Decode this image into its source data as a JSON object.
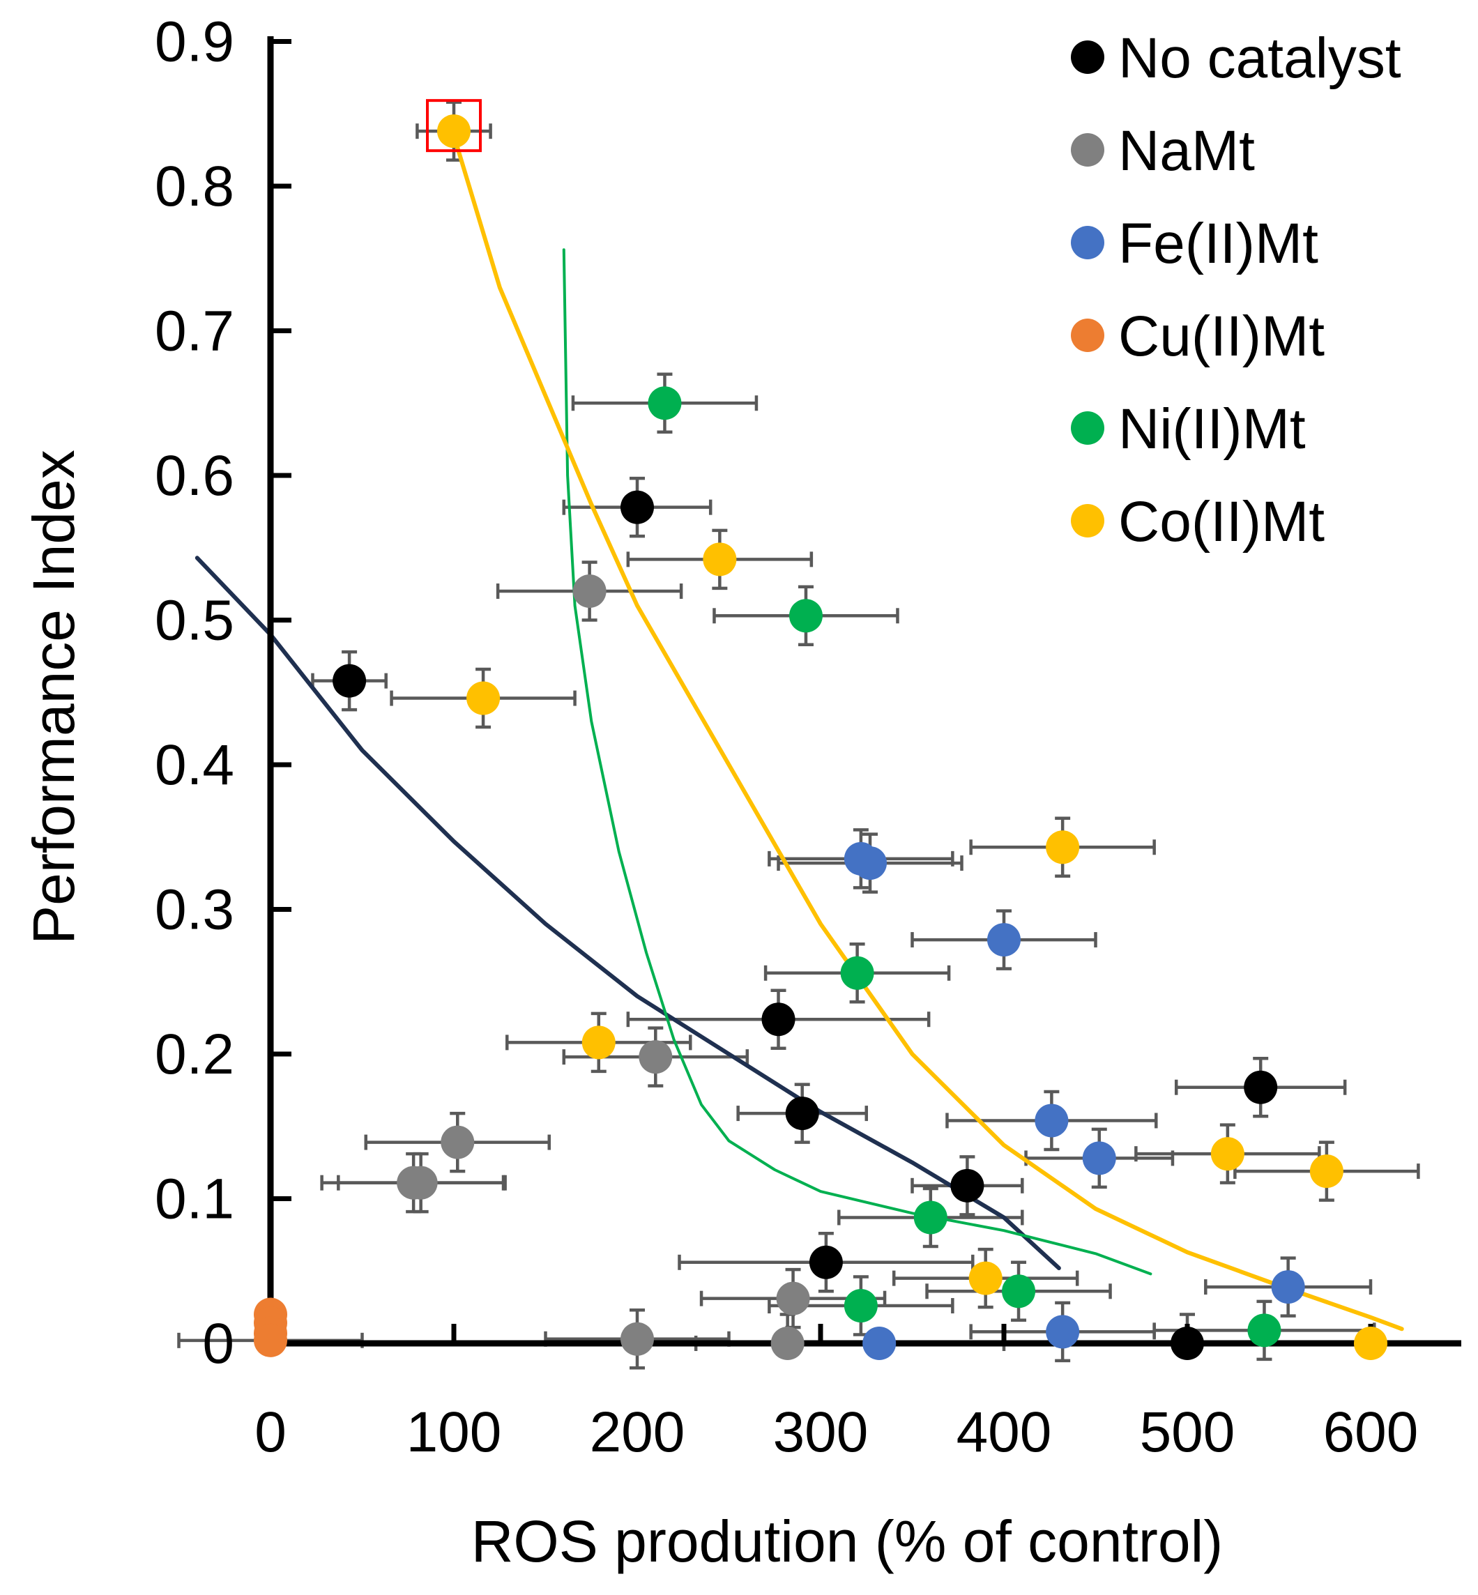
{
  "chart_data": {
    "type": "scatter",
    "title": "",
    "xlabel": "ROS prodution (% of control)",
    "ylabel": "Performance Index",
    "xlim": [
      0,
      650
    ],
    "ylim": [
      0,
      0.9
    ],
    "xticks": [
      "0",
      "100",
      "200",
      "300",
      "400",
      "500",
      "600"
    ],
    "yticks": [
      "0",
      "0.1",
      "0.2",
      "0.3",
      "0.4",
      "0.5",
      "0.6",
      "0.7",
      "0.8",
      "0.9"
    ],
    "legend_position": "top-right",
    "grid": false,
    "series": [
      {
        "name": "No catalyst",
        "color": "#000000",
        "points": [
          {
            "x": 43,
            "y": 0.458,
            "xerr": 20,
            "yerr": 0.02
          },
          {
            "x": 200,
            "y": 0.578,
            "xerr": 40,
            "yerr": 0.02
          },
          {
            "x": 277,
            "y": 0.224,
            "xerr": 82,
            "yerr": 0.02
          },
          {
            "x": 290,
            "y": 0.159,
            "xerr": 35,
            "yerr": 0.02
          },
          {
            "x": 380,
            "y": 0.109,
            "xerr": 30,
            "yerr": 0.02
          },
          {
            "x": 303,
            "y": 0.056,
            "xerr": 80,
            "yerr": 0.02
          },
          {
            "x": 540,
            "y": 0.177,
            "xerr": 46,
            "yerr": 0.02
          },
          {
            "x": 500,
            "y": 0.0,
            "xerr": 100,
            "yerr": 0.02
          }
        ]
      },
      {
        "name": "NaMt",
        "color": "#808080",
        "points": [
          {
            "x": 174,
            "y": 0.52,
            "xerr": 50,
            "yerr": 0.02
          },
          {
            "x": 102,
            "y": 0.139,
            "xerr": 50,
            "yerr": 0.02
          },
          {
            "x": 78,
            "y": 0.111,
            "xerr": 50,
            "yerr": 0.02
          },
          {
            "x": 82,
            "y": 0.111,
            "xerr": 45,
            "yerr": 0.02
          },
          {
            "x": 210,
            "y": 0.198,
            "xerr": 50,
            "yerr": 0.02
          },
          {
            "x": 285,
            "y": 0.031,
            "xerr": 50,
            "yerr": 0.02
          },
          {
            "x": 200,
            "y": 0.003,
            "xerr": 50,
            "yerr": 0.02
          },
          {
            "x": 282,
            "y": 0.0,
            "xerr": 50,
            "yerr": 0.02
          }
        ]
      },
      {
        "name": "Fe(II)Mt",
        "color": "#4472C4",
        "points": [
          {
            "x": 322,
            "y": 0.335,
            "xerr": 50,
            "yerr": 0.02
          },
          {
            "x": 327,
            "y": 0.332,
            "xerr": 50,
            "yerr": 0.02
          },
          {
            "x": 400,
            "y": 0.279,
            "xerr": 50,
            "yerr": 0.02
          },
          {
            "x": 426,
            "y": 0.154,
            "xerr": 57,
            "yerr": 0.02
          },
          {
            "x": 452,
            "y": 0.128,
            "xerr": 40,
            "yerr": 0.02
          },
          {
            "x": 555,
            "y": 0.039,
            "xerr": 45,
            "yerr": 0.02
          },
          {
            "x": 432,
            "y": 0.008,
            "xerr": 50,
            "yerr": 0.02
          },
          {
            "x": 332,
            "y": 0.0,
            "xerr": 0,
            "yerr": 0
          }
        ]
      },
      {
        "name": "Cu(II)Mt",
        "color": "#ED7D31",
        "points": [
          {
            "x": 0,
            "y": 0.02,
            "xerr": 0,
            "yerr": 0
          },
          {
            "x": 0,
            "y": 0.014,
            "xerr": 0,
            "yerr": 0
          },
          {
            "x": 0,
            "y": 0.007,
            "xerr": 0,
            "yerr": 0
          },
          {
            "x": 0,
            "y": 0.002,
            "xerr": 50,
            "yerr": 0
          }
        ]
      },
      {
        "name": "Ni(II)Mt",
        "color": "#00B050",
        "points": [
          {
            "x": 215,
            "y": 0.65,
            "xerr": 50,
            "yerr": 0.02
          },
          {
            "x": 292,
            "y": 0.503,
            "xerr": 50,
            "yerr": 0.02
          },
          {
            "x": 320,
            "y": 0.256,
            "xerr": 50,
            "yerr": 0.02
          },
          {
            "x": 360,
            "y": 0.087,
            "xerr": 50,
            "yerr": 0.02
          },
          {
            "x": 322,
            "y": 0.026,
            "xerr": 50,
            "yerr": 0.02
          },
          {
            "x": 408,
            "y": 0.036,
            "xerr": 50,
            "yerr": 0.02
          },
          {
            "x": 542,
            "y": 0.009,
            "xerr": 60,
            "yerr": 0.02
          }
        ]
      },
      {
        "name": "Co(II)Mt",
        "color": "#FFC000",
        "points": [
          {
            "x": 100,
            "y": 0.838,
            "xerr": 20,
            "yerr": 0.02
          },
          {
            "x": 245,
            "y": 0.542,
            "xerr": 50,
            "yerr": 0.02
          },
          {
            "x": 116,
            "y": 0.446,
            "xerr": 50,
            "yerr": 0.02
          },
          {
            "x": 179,
            "y": 0.208,
            "xerr": 50,
            "yerr": 0.02
          },
          {
            "x": 432,
            "y": 0.343,
            "xerr": 50,
            "yerr": 0.02
          },
          {
            "x": 390,
            "y": 0.045,
            "xerr": 50,
            "yerr": 0.02
          },
          {
            "x": 522,
            "y": 0.131,
            "xerr": 50,
            "yerr": 0.02
          },
          {
            "x": 576,
            "y": 0.119,
            "xerr": 50,
            "yerr": 0.02
          },
          {
            "x": 600,
            "y": 0.0,
            "xerr": 0,
            "yerr": 0
          }
        ]
      }
    ],
    "trendlines": [
      {
        "name": "No catalyst trend",
        "color": "#1F3050",
        "points": [
          [
            -40,
            0.543
          ],
          [
            0,
            0.49
          ],
          [
            50,
            0.41
          ],
          [
            100,
            0.347
          ],
          [
            150,
            0.29
          ],
          [
            200,
            0.24
          ],
          [
            250,
            0.2
          ],
          [
            300,
            0.16
          ],
          [
            350,
            0.125
          ],
          [
            400,
            0.087
          ],
          [
            430,
            0.052
          ]
        ]
      },
      {
        "name": "Ni(II)Mt trend",
        "color": "#00B050",
        "points": [
          [
            160,
            0.756
          ],
          [
            162,
            0.6
          ],
          [
            166,
            0.51
          ],
          [
            175,
            0.43
          ],
          [
            190,
            0.34
          ],
          [
            205,
            0.27
          ],
          [
            220,
            0.21
          ],
          [
            235,
            0.165
          ],
          [
            250,
            0.14
          ],
          [
            275,
            0.12
          ],
          [
            300,
            0.105
          ],
          [
            350,
            0.09
          ],
          [
            400,
            0.078
          ],
          [
            450,
            0.062
          ],
          [
            480,
            0.048
          ]
        ]
      },
      {
        "name": "Co(II)Mt trend",
        "color": "#FFC000",
        "points": [
          [
            100,
            0.835
          ],
          [
            125,
            0.73
          ],
          [
            150,
            0.655
          ],
          [
            175,
            0.58
          ],
          [
            200,
            0.51
          ],
          [
            250,
            0.4
          ],
          [
            300,
            0.29
          ],
          [
            350,
            0.2
          ],
          [
            400,
            0.137
          ],
          [
            450,
            0.093
          ],
          [
            500,
            0.063
          ],
          [
            550,
            0.04
          ],
          [
            600,
            0.018
          ],
          [
            617,
            0.01
          ]
        ]
      }
    ],
    "highlight": {
      "x": 100,
      "y": 0.838,
      "color": "#FF0000"
    }
  }
}
